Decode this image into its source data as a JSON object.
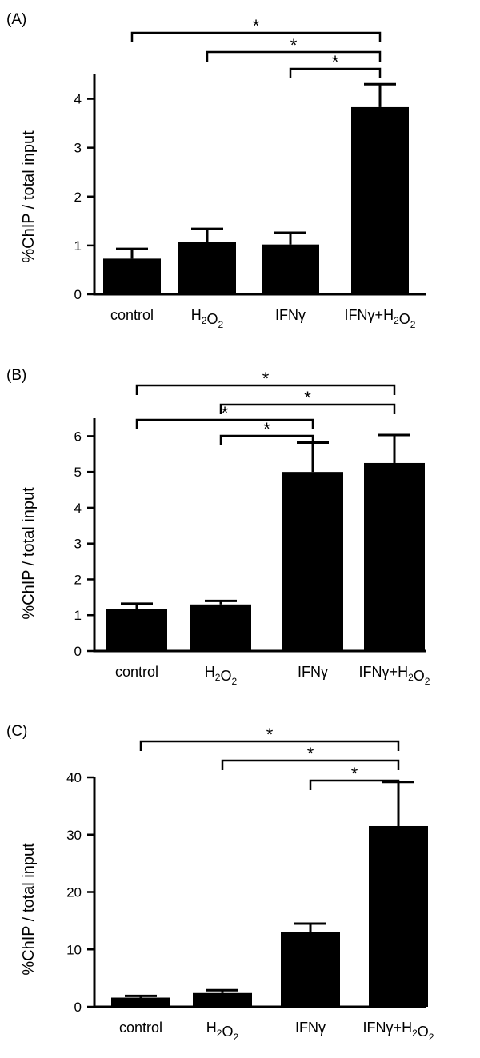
{
  "colors": {
    "bar": "#000000",
    "axis": "#000000",
    "background": "#ffffff"
  },
  "chart_data": [
    {
      "panel_label": "(A)",
      "type": "bar",
      "ylabel": "%ChIP / total input",
      "ylim": [
        0,
        4.5
      ],
      "yticks": [
        0,
        1,
        2,
        3,
        4
      ],
      "categories": [
        "control",
        "H2O2",
        "IFNγ",
        "IFNγ+H2O2"
      ],
      "values": [
        0.73,
        1.07,
        1.02,
        3.83
      ],
      "errors": [
        0.2,
        0.27,
        0.24,
        0.47
      ],
      "significance": [
        {
          "from": 0,
          "to": 3,
          "label": "*"
        },
        {
          "from": 1,
          "to": 3,
          "label": "*"
        },
        {
          "from": 2,
          "to": 3,
          "label": "*"
        }
      ]
    },
    {
      "panel_label": "(B)",
      "type": "bar",
      "ylabel": "%ChIP / total input",
      "ylim": [
        0,
        6.5
      ],
      "yticks": [
        0,
        1,
        2,
        3,
        4,
        5,
        6
      ],
      "categories": [
        "control",
        "H2O2",
        "IFNγ",
        "IFNγ+H2O2"
      ],
      "values": [
        1.18,
        1.3,
        5.0,
        5.25
      ],
      "errors": [
        0.14,
        0.1,
        0.82,
        0.78
      ],
      "significance": [
        {
          "from": 0,
          "to": 3,
          "label": "*"
        },
        {
          "from": 1,
          "to": 3,
          "label": "*"
        },
        {
          "from": 0,
          "to": 2,
          "label": "*"
        },
        {
          "from": 1,
          "to": 2,
          "label": "*"
        }
      ]
    },
    {
      "panel_label": "(C)",
      "type": "bar",
      "ylabel": "%ChIP / total input",
      "ylim": [
        0,
        40
      ],
      "yticks": [
        0,
        10,
        20,
        30,
        40
      ],
      "categories": [
        "control",
        "H2O2",
        "IFNγ",
        "IFNγ+H2O2"
      ],
      "values": [
        1.6,
        2.4,
        13.0,
        31.5
      ],
      "errors": [
        0.3,
        0.5,
        1.5,
        7.7
      ],
      "significance": [
        {
          "from": 0,
          "to": 3,
          "label": "*"
        },
        {
          "from": 1,
          "to": 3,
          "label": "*"
        },
        {
          "from": 2,
          "to": 3,
          "label": "*"
        }
      ]
    }
  ]
}
